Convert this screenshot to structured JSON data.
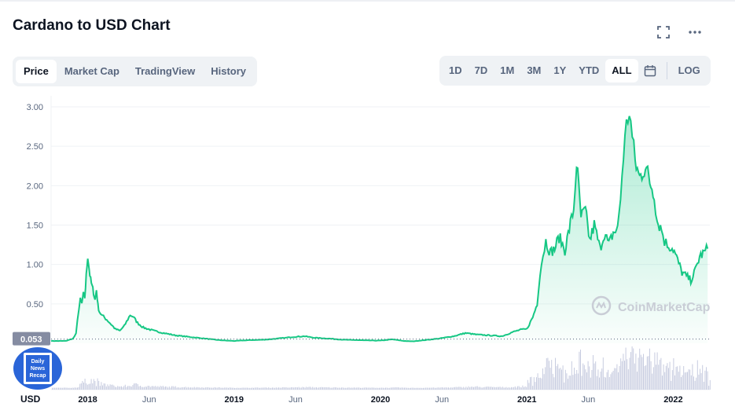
{
  "header": {
    "title": "Cardano to USD Chart"
  },
  "tabs": [
    {
      "label": "Price",
      "active": true
    },
    {
      "label": "Market Cap",
      "active": false
    },
    {
      "label": "TradingView",
      "active": false
    },
    {
      "label": "History",
      "active": false
    }
  ],
  "ranges": [
    {
      "label": "1D",
      "active": false
    },
    {
      "label": "7D",
      "active": false
    },
    {
      "label": "1M",
      "active": false
    },
    {
      "label": "3M",
      "active": false
    },
    {
      "label": "1Y",
      "active": false
    },
    {
      "label": "YTD",
      "active": false
    },
    {
      "label": "ALL",
      "active": true
    }
  ],
  "log_label": "LOG",
  "icons": {
    "fullscreen": "fullscreen-icon",
    "more": "more-icon",
    "calendar": "calendar-icon"
  },
  "colors": {
    "line": "#16c784",
    "volume": "#c7cce0",
    "accent": "#16c784"
  },
  "watermark": "CoinMarketCap",
  "badge": {
    "line1": "Daily",
    "line2": "News",
    "line3": "Recap"
  },
  "chart_data": {
    "type": "area",
    "series": [
      {
        "name": "Price",
        "unit": "USD"
      }
    ],
    "y_ticks": [
      "3.00",
      "2.50",
      "2.00",
      "1.50",
      "1.00",
      "0.50"
    ],
    "ylim": [
      0,
      3.0
    ],
    "current_label": "0.053",
    "currency_label": "USD",
    "x_ticks": [
      {
        "label": "2018",
        "t": 2018.0,
        "bold": true
      },
      {
        "label": "Jun",
        "t": 2018.42,
        "bold": false
      },
      {
        "label": "2019",
        "t": 2019.0,
        "bold": true
      },
      {
        "label": "Jun",
        "t": 2019.42,
        "bold": false
      },
      {
        "label": "2020",
        "t": 2020.0,
        "bold": true
      },
      {
        "label": "Jun",
        "t": 2020.42,
        "bold": false
      },
      {
        "label": "2021",
        "t": 2021.0,
        "bold": true
      },
      {
        "label": "Jun",
        "t": 2021.42,
        "bold": false
      },
      {
        "label": "2022",
        "t": 2022.0,
        "bold": true
      }
    ],
    "xlim": [
      2017.75,
      2022.25
    ],
    "points": [
      [
        2017.75,
        0.03
      ],
      [
        2017.85,
        0.03
      ],
      [
        2017.9,
        0.06
      ],
      [
        2017.92,
        0.12
      ],
      [
        2017.94,
        0.45
      ],
      [
        2017.95,
        0.55
      ],
      [
        2017.96,
        0.5
      ],
      [
        2017.97,
        0.62
      ],
      [
        2017.98,
        0.58
      ],
      [
        2017.99,
        0.85
      ],
      [
        2018.0,
        1.12
      ],
      [
        2018.01,
        0.95
      ],
      [
        2018.02,
        0.8
      ],
      [
        2018.03,
        0.72
      ],
      [
        2018.04,
        0.65
      ],
      [
        2018.05,
        0.55
      ],
      [
        2018.06,
        0.68
      ],
      [
        2018.07,
        0.48
      ],
      [
        2018.08,
        0.4
      ],
      [
        2018.1,
        0.35
      ],
      [
        2018.13,
        0.3
      ],
      [
        2018.16,
        0.24
      ],
      [
        2018.19,
        0.18
      ],
      [
        2018.22,
        0.16
      ],
      [
        2018.25,
        0.22
      ],
      [
        2018.29,
        0.36
      ],
      [
        2018.31,
        0.34
      ],
      [
        2018.34,
        0.26
      ],
      [
        2018.38,
        0.2
      ],
      [
        2018.45,
        0.16
      ],
      [
        2018.52,
        0.13
      ],
      [
        2018.6,
        0.1
      ],
      [
        2018.7,
        0.08
      ],
      [
        2018.8,
        0.06
      ],
      [
        2018.9,
        0.04
      ],
      [
        2019.0,
        0.03
      ],
      [
        2019.1,
        0.04
      ],
      [
        2019.2,
        0.045
      ],
      [
        2019.3,
        0.06
      ],
      [
        2019.4,
        0.08
      ],
      [
        2019.48,
        0.09
      ],
      [
        2019.55,
        0.07
      ],
      [
        2019.65,
        0.06
      ],
      [
        2019.75,
        0.045
      ],
      [
        2019.85,
        0.04
      ],
      [
        2019.95,
        0.035
      ],
      [
        2020.0,
        0.035
      ],
      [
        2020.08,
        0.05
      ],
      [
        2020.16,
        0.03
      ],
      [
        2020.22,
        0.025
      ],
      [
        2020.3,
        0.04
      ],
      [
        2020.4,
        0.06
      ],
      [
        2020.5,
        0.09
      ],
      [
        2020.58,
        0.13
      ],
      [
        2020.66,
        0.11
      ],
      [
        2020.75,
        0.1
      ],
      [
        2020.83,
        0.09
      ],
      [
        2020.9,
        0.14
      ],
      [
        2020.95,
        0.17
      ],
      [
        2021.0,
        0.18
      ],
      [
        2021.04,
        0.33
      ],
      [
        2021.07,
        0.5
      ],
      [
        2021.09,
        0.9
      ],
      [
        2021.11,
        1.12
      ],
      [
        2021.13,
        1.3
      ],
      [
        2021.16,
        1.15
      ],
      [
        2021.19,
        1.2
      ],
      [
        2021.22,
        1.35
      ],
      [
        2021.26,
        1.18
      ],
      [
        2021.29,
        1.45
      ],
      [
        2021.32,
        1.7
      ],
      [
        2021.34,
        2.3
      ],
      [
        2021.37,
        1.6
      ],
      [
        2021.4,
        1.68
      ],
      [
        2021.43,
        1.3
      ],
      [
        2021.46,
        1.5
      ],
      [
        2021.5,
        1.2
      ],
      [
        2021.53,
        1.4
      ],
      [
        2021.56,
        1.25
      ],
      [
        2021.59,
        1.4
      ],
      [
        2021.62,
        1.45
      ],
      [
        2021.64,
        1.85
      ],
      [
        2021.66,
        2.4
      ],
      [
        2021.68,
        2.75
      ],
      [
        2021.7,
        2.97
      ],
      [
        2021.72,
        2.6
      ],
      [
        2021.74,
        2.3
      ],
      [
        2021.77,
        2.1
      ],
      [
        2021.81,
        2.25
      ],
      [
        2021.84,
        2.05
      ],
      [
        2021.87,
        1.9
      ],
      [
        2021.89,
        1.55
      ],
      [
        2021.92,
        1.45
      ],
      [
        2021.94,
        1.3
      ],
      [
        2021.96,
        1.25
      ],
      [
        2022.0,
        1.2
      ],
      [
        2022.03,
        1.05
      ],
      [
        2022.06,
        0.9
      ],
      [
        2022.09,
        0.85
      ],
      [
        2022.12,
        0.8
      ],
      [
        2022.15,
        0.92
      ],
      [
        2022.18,
        1.1
      ],
      [
        2022.21,
        1.15
      ],
      [
        2022.235,
        1.2
      ]
    ],
    "watermark": "CoinMarketCap"
  }
}
